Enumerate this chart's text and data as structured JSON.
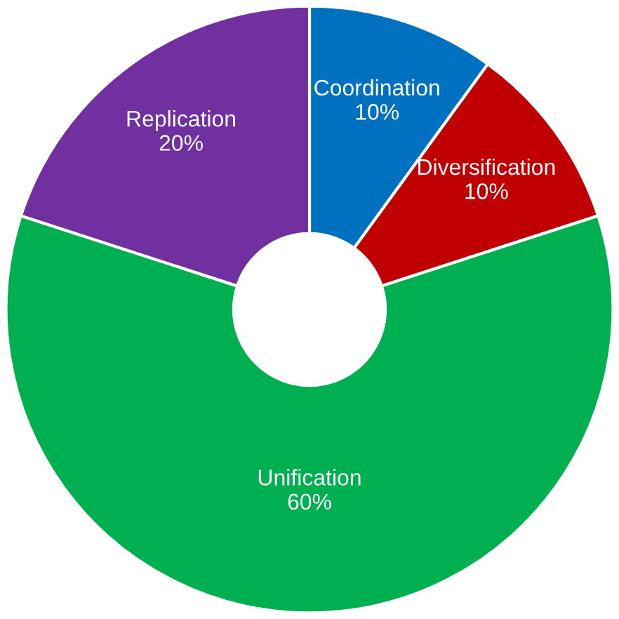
{
  "chart_data": {
    "type": "donut",
    "categories": [
      "Coordination",
      "Diversification",
      "Unification",
      "Replication"
    ],
    "values": [
      10,
      10,
      60,
      20
    ],
    "colors": [
      "#0070c0",
      "#c00000",
      "#00b050",
      "#7030a0"
    ],
    "value_labels": [
      "10%",
      "10%",
      "60%",
      "20%"
    ],
    "legend": false
  }
}
